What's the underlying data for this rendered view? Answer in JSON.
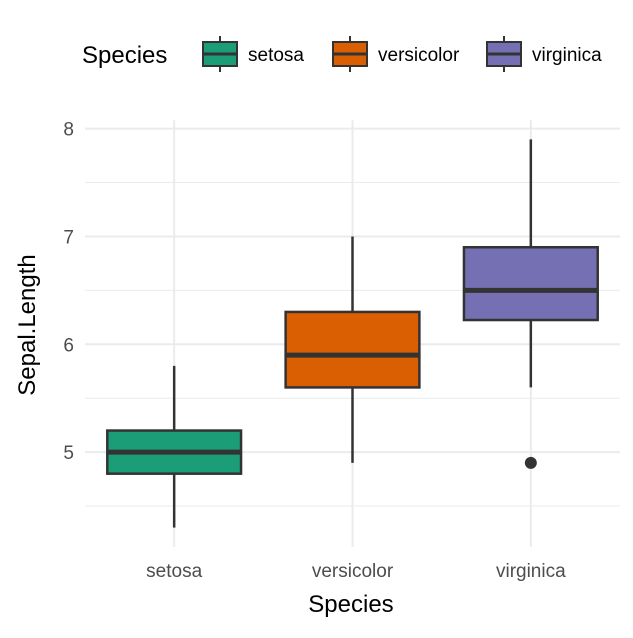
{
  "chart_data": {
    "type": "boxplot",
    "xlabel": "Species",
    "ylabel": "Sepal.Length",
    "ylim": [
      4.12,
      8.08
    ],
    "yticks": [
      5,
      6,
      7,
      8
    ],
    "yminor": [
      4.5,
      5.5,
      6.5,
      7.5
    ],
    "grid": true,
    "legend": {
      "title": "Species",
      "position": "top"
    },
    "categories": [
      "setosa",
      "versicolor",
      "virginica"
    ],
    "colors": [
      "#1B9E77",
      "#D95F02",
      "#7570B3"
    ],
    "boxes": [
      {
        "name": "setosa",
        "min": 4.3,
        "q1": 4.8,
        "median": 5.0,
        "q3": 5.2,
        "max": 5.8,
        "outliers": []
      },
      {
        "name": "versicolor",
        "min": 4.9,
        "q1": 5.6,
        "median": 5.9,
        "q3": 6.3,
        "max": 7.0,
        "outliers": []
      },
      {
        "name": "virginica",
        "min": 5.6,
        "q1": 6.225,
        "median": 6.5,
        "q3": 6.9,
        "max": 7.9,
        "outliers": [
          4.9
        ]
      }
    ]
  }
}
